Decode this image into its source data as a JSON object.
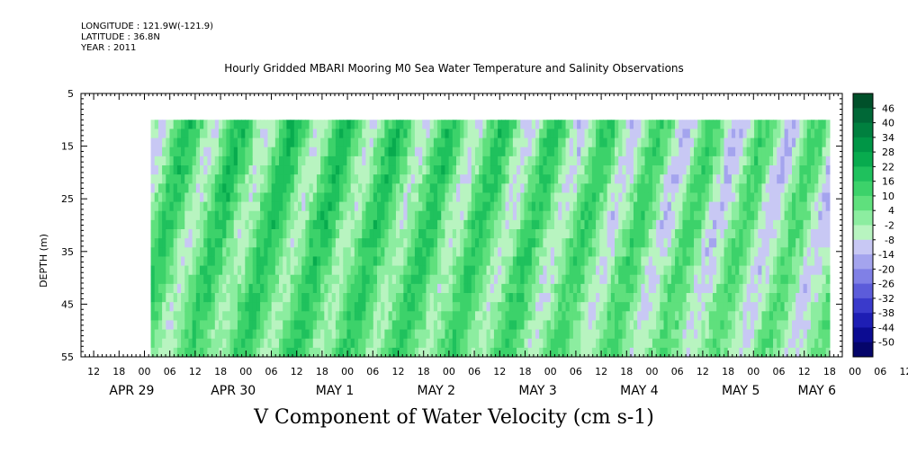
{
  "header": {
    "longitude": "LONGITUDE : 121.9W(-121.9)",
    "latitude": "LATITUDE : 36.8N",
    "year": "YEAR : 2011"
  },
  "chart_data": {
    "type": "heatmap",
    "title": "Hourly Gridded MBARI Mooring M0 Sea Water Temperature and Salinity Observations",
    "xlabel": "V Component of Water Velocity (cm s-1)",
    "ylabel": "DEPTH (m)",
    "ylim": [
      5,
      55
    ],
    "y_reversed": true,
    "y_ticks": [
      5,
      15,
      25,
      35,
      45,
      55
    ],
    "x_hour_ticks": [
      "12",
      "18",
      "00",
      "06",
      "12",
      "18",
      "00",
      "06",
      "12",
      "18",
      "00",
      "06",
      "12",
      "18",
      "00",
      "06",
      "12",
      "18",
      "00",
      "06",
      "12",
      "18",
      "00",
      "06",
      "12",
      "18",
      "00",
      "06",
      "12",
      "18",
      "00",
      "06",
      "12",
      "18",
      "00",
      "06"
    ],
    "x_date_labels": [
      {
        "label": "APR 29",
        "hour": 12
      },
      {
        "label": "APR 30",
        "hour": 36
      },
      {
        "label": "MAY  1",
        "hour": 60
      },
      {
        "label": "MAY  2",
        "hour": 84
      },
      {
        "label": "MAY  3",
        "hour": 108
      },
      {
        "label": "MAY  4",
        "hour": 132
      },
      {
        "label": "MAY  5",
        "hour": 156
      },
      {
        "label": "MAY  6",
        "hour": 174
      }
    ],
    "x_start": "APR 29 09:00",
    "data_start_hour": 16.5,
    "data_end_hour": 177,
    "data_top_depth": 10,
    "colorbar_levels": [
      46,
      40,
      34,
      28,
      22,
      16,
      10,
      4,
      -2,
      -8,
      -14,
      -20,
      -26,
      -32,
      -38,
      -44,
      -50
    ],
    "colorbar_colors": [
      "#00502a",
      "#006837",
      "#00803f",
      "#009646",
      "#08ab4e",
      "#1fc15d",
      "#3cd26a",
      "#5fe07d",
      "#8ceda0",
      "#b8f4c0",
      "#c8c8f4",
      "#a4a4ee",
      "#8080e6",
      "#5c5cda",
      "#3a3acb",
      "#1e1eb4",
      "#0c0c92",
      "#05056a"
    ],
    "v_component_pattern": "alternating positive (green) and negative (blue) bands with semidiurnal tidal period"
  }
}
